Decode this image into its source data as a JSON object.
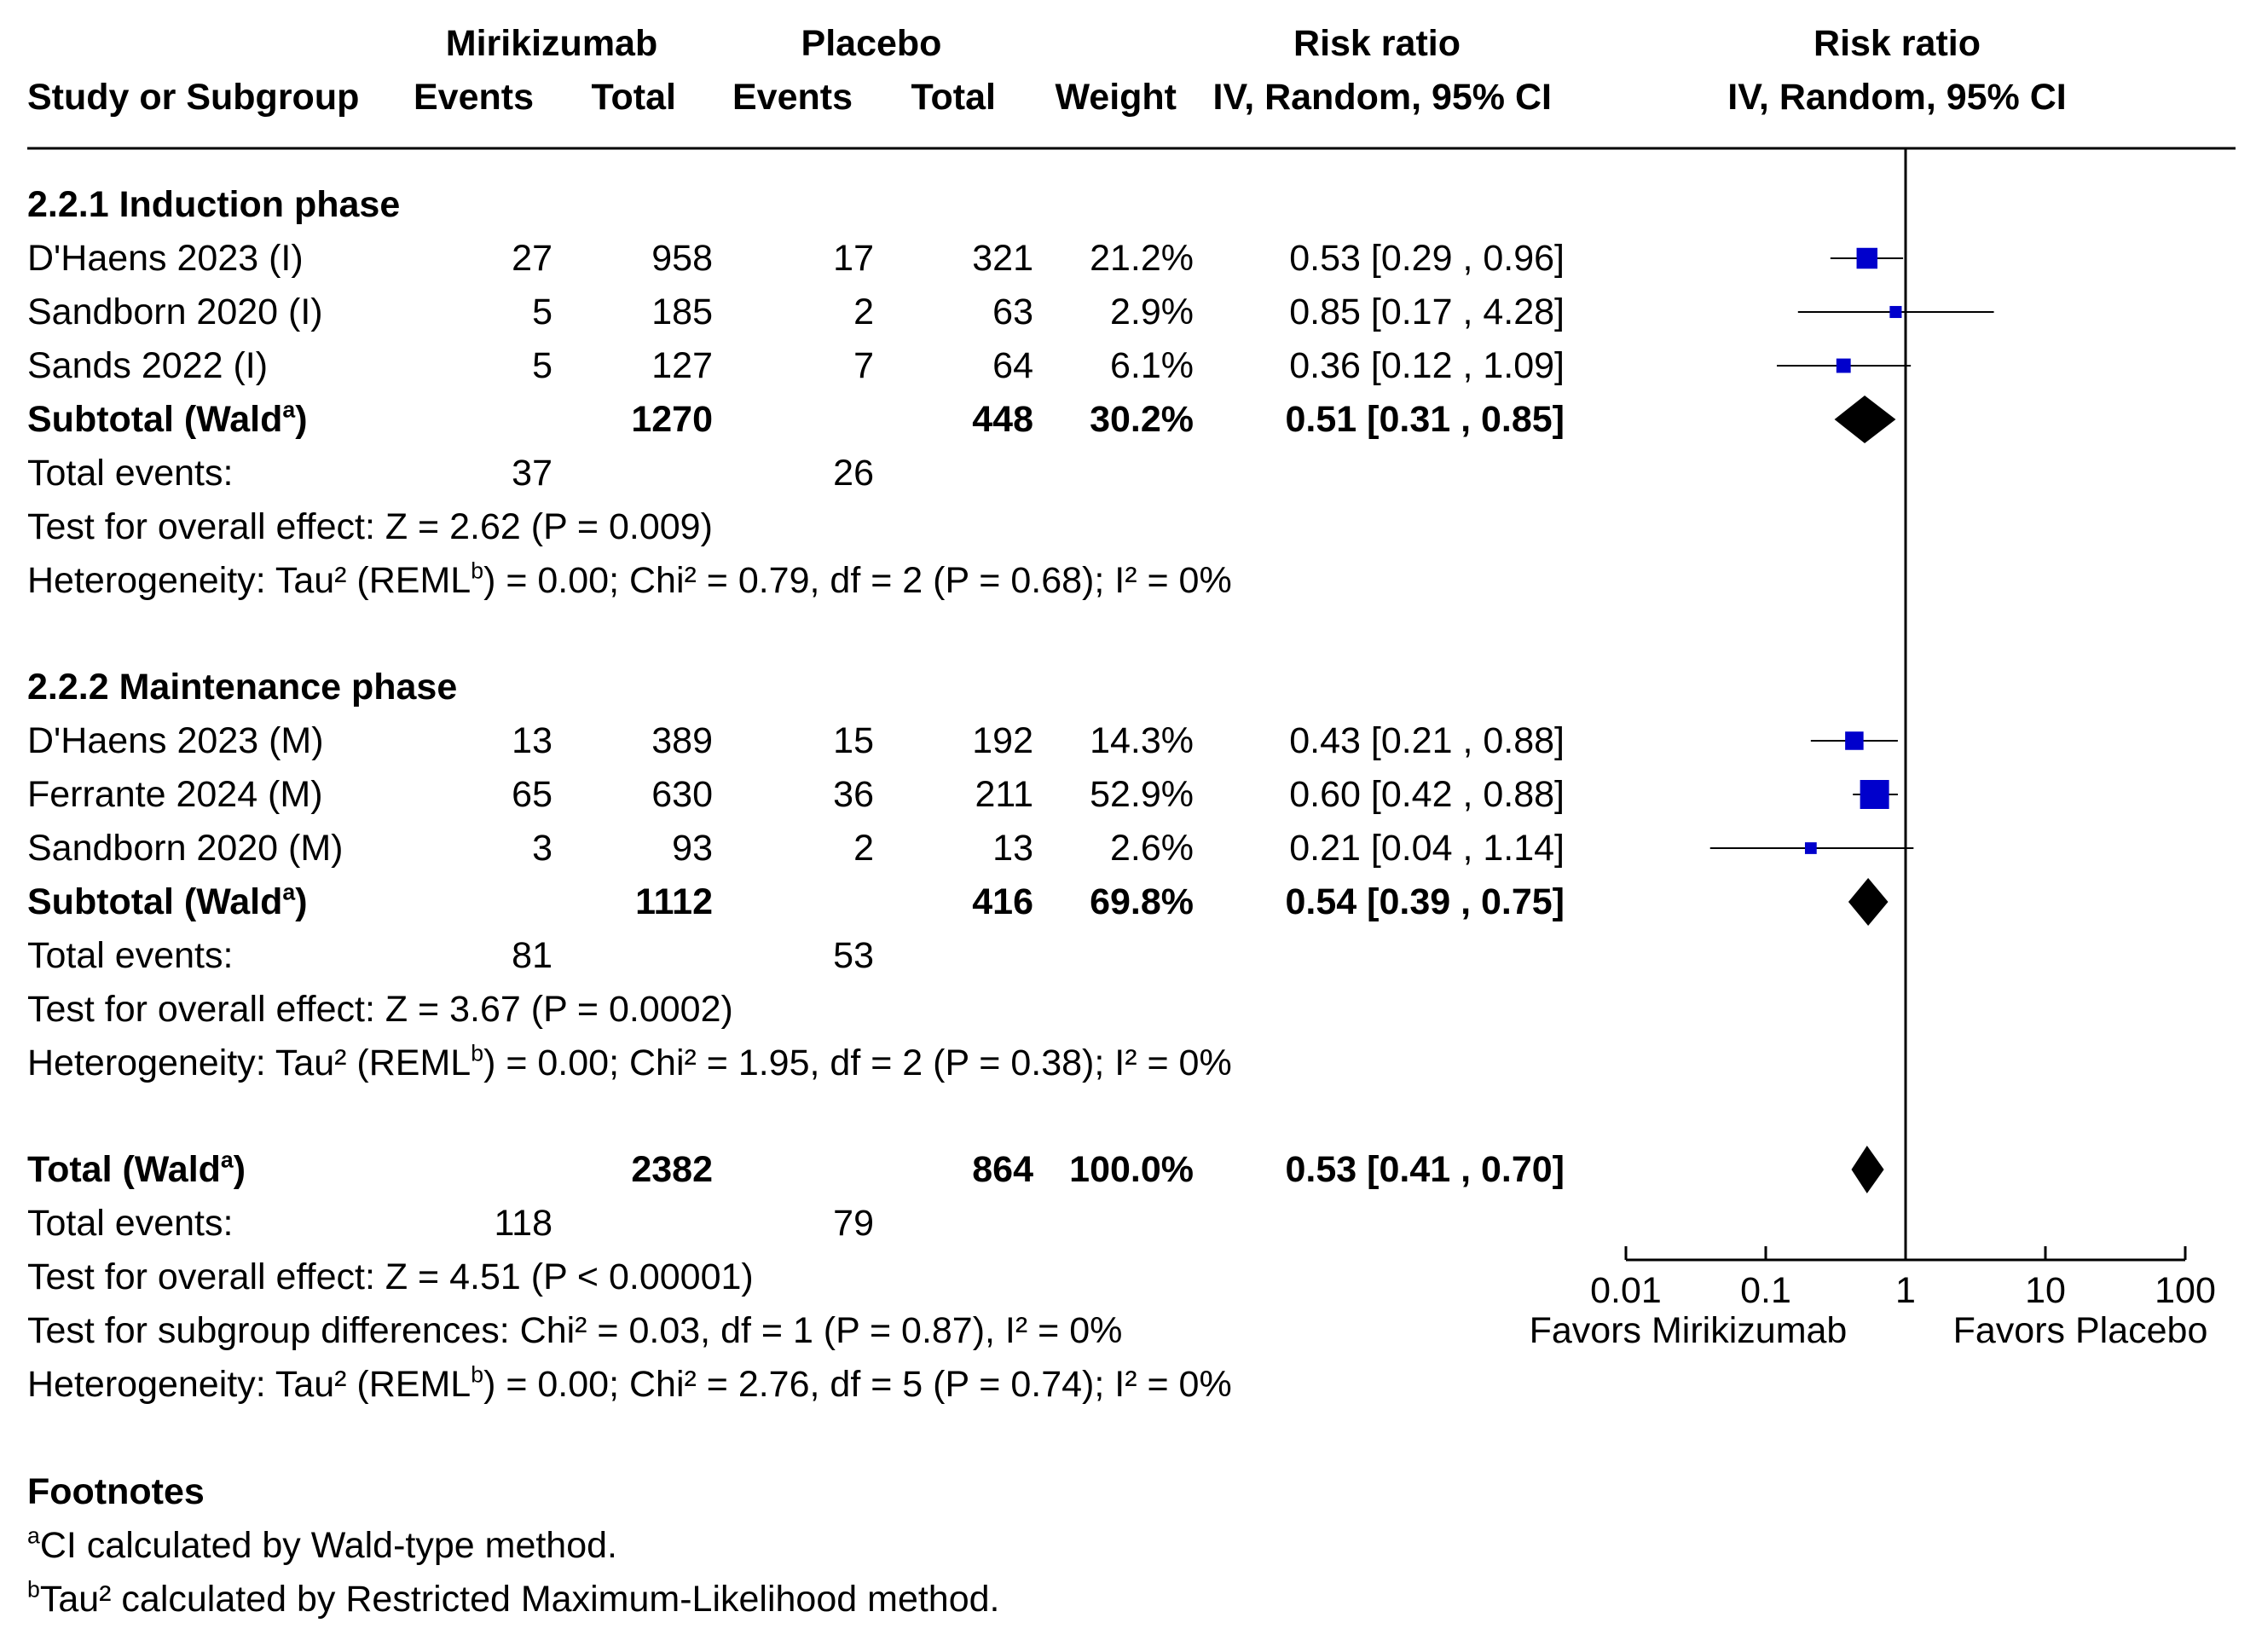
{
  "header": {
    "group1": "Mirikizumab",
    "group2": "Placebo",
    "rr_title_table": "Risk ratio",
    "rr_method_table": "IV, Random, 95% CI",
    "rr_title_plot": "Risk ratio",
    "rr_method_plot": "IV, Random, 95% CI",
    "study_col": "Study or Subgroup",
    "events1": "Events",
    "total1": "Total",
    "events2": "Events",
    "total2": "Total",
    "weight": "Weight"
  },
  "subgroups": [
    {
      "title": "2.2.1 Induction phase",
      "studies": [
        {
          "name": "D'Haens 2023 (I)",
          "e1": "27",
          "t1": "958",
          "e2": "17",
          "t2": "321",
          "weight": "21.2%",
          "ci": "0.53 [0.29 , 0.96]"
        },
        {
          "name": "Sandborn 2020 (I)",
          "e1": "5",
          "t1": "185",
          "e2": "2",
          "t2": "63",
          "weight": "2.9%",
          "ci": "0.85 [0.17 , 4.28]"
        },
        {
          "name": "Sands 2022 (I)",
          "e1": "5",
          "t1": "127",
          "e2": "7",
          "t2": "64",
          "weight": "6.1%",
          "ci": "0.36 [0.12 , 1.09]"
        }
      ],
      "subtotal": {
        "label": "Subtotal (Wald",
        "sup": "a",
        "label_end": ")",
        "t1": "1270",
        "t2": "448",
        "weight": "30.2%",
        "ci": "0.51 [0.31 , 0.85]"
      },
      "total_events": {
        "label": "Total events:",
        "e1": "37",
        "e2": "26"
      },
      "overall_effect": "Test for overall effect: Z = 2.62 (P = 0.009)",
      "heterogeneity": {
        "pre": "Heterogeneity: Tau² (REML",
        "sup": "b",
        "post": ") = 0.00; Chi² = 0.79, df = 2 (P = 0.68); I² = 0%"
      }
    },
    {
      "title": "2.2.2 Maintenance phase",
      "studies": [
        {
          "name": "D'Haens 2023 (M)",
          "e1": "13",
          "t1": "389",
          "e2": "15",
          "t2": "192",
          "weight": "14.3%",
          "ci": "0.43 [0.21 , 0.88]"
        },
        {
          "name": "Ferrante 2024 (M)",
          "e1": "65",
          "t1": "630",
          "e2": "36",
          "t2": "211",
          "weight": "52.9%",
          "ci": "0.60 [0.42 , 0.88]"
        },
        {
          "name": "Sandborn 2020 (M)",
          "e1": "3",
          "t1": "93",
          "e2": "2",
          "t2": "13",
          "weight": "2.6%",
          "ci": "0.21 [0.04 , 1.14]"
        }
      ],
      "subtotal": {
        "label": "Subtotal (Wald",
        "sup": "a",
        "label_end": ")",
        "t1": "1112",
        "t2": "416",
        "weight": "69.8%",
        "ci": "0.54 [0.39 , 0.75]"
      },
      "total_events": {
        "label": "Total events:",
        "e1": "81",
        "e2": "53"
      },
      "overall_effect": "Test for overall effect: Z = 3.67 (P = 0.0002)",
      "heterogeneity": {
        "pre": "Heterogeneity: Tau² (REML",
        "sup": "b",
        "post": ") = 0.00; Chi² = 1.95, df = 2 (P = 0.38); I² = 0%"
      }
    }
  ],
  "total": {
    "label": "Total (Wald",
    "sup": "a",
    "label_end": ")",
    "t1": "2382",
    "t2": "864",
    "weight": "100.0%",
    "ci": "0.53 [0.41 , 0.70]"
  },
  "total_events": {
    "label": "Total events:",
    "e1": "118",
    "e2": "79"
  },
  "overall_effect": "Test for overall effect: Z = 4.51 (P < 0.00001)",
  "subgroup_diff": "Test for subgroup differences: Chi² = 0.03, df = 1 (P = 0.87), I² = 0%",
  "heterogeneity": {
    "pre": "Heterogeneity: Tau² (REML",
    "sup": "b",
    "post": ") = 0.00; Chi² = 2.76, df = 5 (P = 0.74); I² = 0%"
  },
  "axis": {
    "favors_left": "Favors Mirikizumab",
    "favors_right": "Favors Placebo"
  },
  "footnotes": {
    "title": "Footnotes",
    "a_sup": "a",
    "a_text": "CI calculated by Wald-type method.",
    "b_sup": "b",
    "b_text": "Tau² calculated by Restricted Maximum-Likelihood method."
  },
  "colors": {
    "study_marker": "#0000cc",
    "pooled_marker": "#000000",
    "line": "#000000"
  },
  "chart_data": {
    "type": "forest",
    "scale": "log",
    "xlim": [
      0.01,
      100
    ],
    "ticks": [
      0.01,
      0.1,
      1,
      10,
      100
    ],
    "tick_labels": [
      "0.01",
      "0.1",
      "1",
      "10",
      "100"
    ],
    "null_value": 1,
    "studies": [
      {
        "name": "D'Haens 2023 (I)",
        "rr": 0.53,
        "lo": 0.29,
        "hi": 0.96,
        "weight": 21.2
      },
      {
        "name": "Sandborn 2020 (I)",
        "rr": 0.85,
        "lo": 0.17,
        "hi": 4.28,
        "weight": 2.9
      },
      {
        "name": "Sands 2022 (I)",
        "rr": 0.36,
        "lo": 0.12,
        "hi": 1.09,
        "weight": 6.1
      },
      {
        "name": "D'Haens 2023 (M)",
        "rr": 0.43,
        "lo": 0.21,
        "hi": 0.88,
        "weight": 14.3
      },
      {
        "name": "Ferrante 2024 (M)",
        "rr": 0.6,
        "lo": 0.42,
        "hi": 0.88,
        "weight": 52.9
      },
      {
        "name": "Sandborn 2020 (M)",
        "rr": 0.21,
        "lo": 0.04,
        "hi": 1.14,
        "weight": 2.6
      }
    ],
    "pooled": [
      {
        "name": "Subtotal Induction",
        "rr": 0.51,
        "lo": 0.31,
        "hi": 0.85
      },
      {
        "name": "Subtotal Maintenance",
        "rr": 0.54,
        "lo": 0.39,
        "hi": 0.75
      },
      {
        "name": "Total",
        "rr": 0.53,
        "lo": 0.41,
        "hi": 0.7
      }
    ]
  }
}
